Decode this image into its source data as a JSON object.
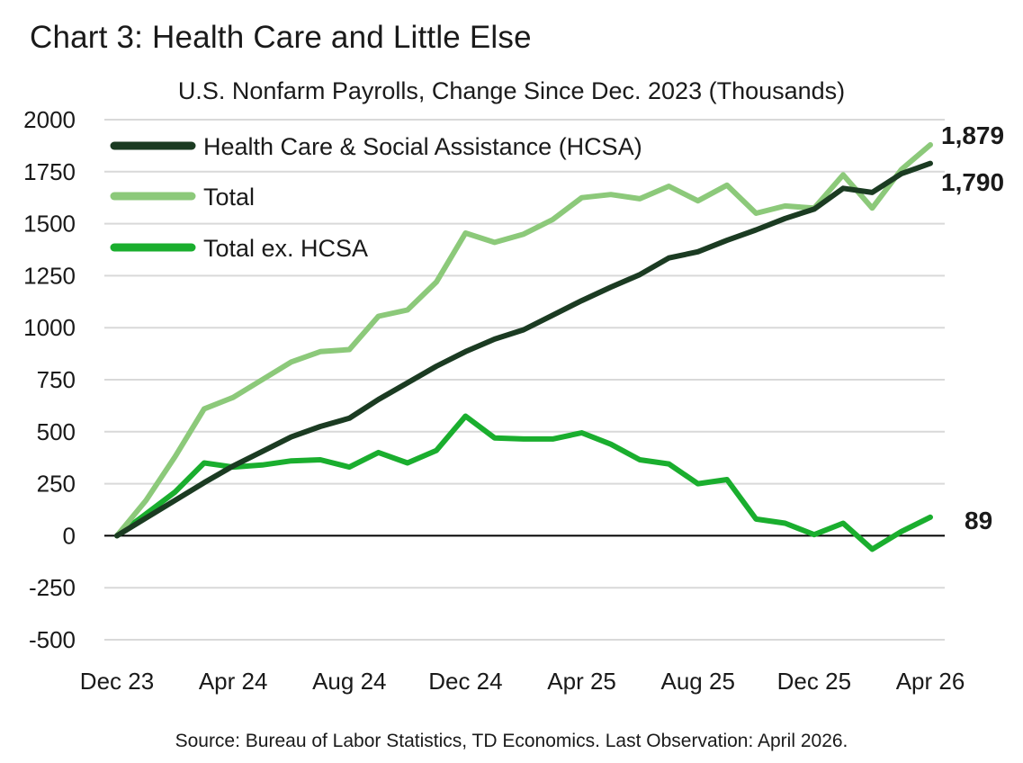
{
  "title": "Chart 3: Health Care and Little Else",
  "subtitle": "U.S. Nonfarm Payrolls, Change Since Dec. 2023 (Thousands)",
  "source": "Source: Bureau of Labor Statistics, TD Economics. Last Observation: April 2026.",
  "colors": {
    "hcsa": "#1b3b22",
    "total": "#8cc97a",
    "total_ex_hcsa": "#1aae2e",
    "grid": "#d9d9d9",
    "zero_line": "#000000"
  },
  "chart_data": {
    "type": "line",
    "title": "Chart 3: Health Care and Little Else",
    "subtitle": "U.S. Nonfarm Payrolls, Change Since Dec. 2023 (Thousands)",
    "x": [
      "Dec 23",
      "Jan 24",
      "Feb 24",
      "Mar 24",
      "Apr 24",
      "May 24",
      "Jun 24",
      "Jul 24",
      "Aug 24",
      "Sep 24",
      "Oct 24",
      "Nov 24",
      "Dec 24",
      "Jan 25",
      "Feb 25",
      "Mar 25",
      "Apr 25",
      "May 25",
      "Jun 25",
      "Jul 25",
      "Aug 25",
      "Sep 25",
      "Oct 25",
      "Nov 25",
      "Dec 25",
      "Jan 26",
      "Feb 26",
      "Mar 26",
      "Apr 26"
    ],
    "x_tick_labels": [
      "Dec 23",
      "Apr 24",
      "Aug 24",
      "Dec 24",
      "Apr 25",
      "Aug 25",
      "Dec 25",
      "Apr 26"
    ],
    "x_tick_indices": [
      0,
      4,
      8,
      12,
      16,
      20,
      24,
      28
    ],
    "ylim": [
      -500,
      2000
    ],
    "y_ticks": [
      -500,
      -250,
      0,
      250,
      500,
      750,
      1000,
      1250,
      1500,
      1750,
      2000
    ],
    "grid": true,
    "legend_position": "top-left",
    "series": [
      {
        "name": "Health Care & Social Assistance (HCSA)",
        "color_key": "hcsa",
        "end_label": "1,790",
        "values": [
          0,
          85,
          170,
          255,
          335,
          405,
          475,
          525,
          565,
          655,
          735,
          815,
          885,
          945,
          990,
          1060,
          1130,
          1195,
          1255,
          1335,
          1365,
          1420,
          1470,
          1525,
          1570,
          1670,
          1650,
          1740,
          1790
        ]
      },
      {
        "name": "Total",
        "color_key": "total",
        "end_label": "1,879",
        "values": [
          0,
          170,
          380,
          610,
          665,
          750,
          835,
          885,
          895,
          1055,
          1085,
          1220,
          1455,
          1410,
          1450,
          1520,
          1625,
          1640,
          1620,
          1680,
          1610,
          1685,
          1550,
          1585,
          1575,
          1735,
          1575,
          1760,
          1879
        ]
      },
      {
        "name": "Total ex. HCSA",
        "color_key": "total_ex_hcsa",
        "end_label": "89",
        "values": [
          0,
          105,
          210,
          350,
          330,
          340,
          360,
          365,
          330,
          400,
          350,
          410,
          575,
          470,
          465,
          465,
          495,
          440,
          365,
          345,
          250,
          270,
          80,
          60,
          5,
          60,
          -65,
          20,
          89
        ]
      }
    ]
  }
}
